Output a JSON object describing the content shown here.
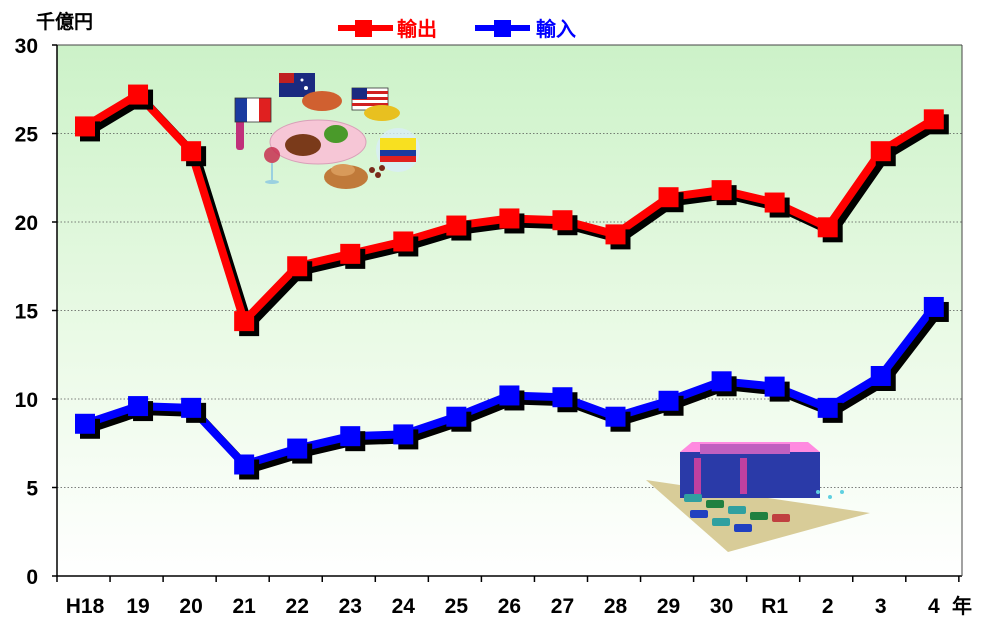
{
  "chart_data": {
    "type": "line",
    "y_unit": "千億円",
    "x_unit": "年",
    "ylim": [
      0,
      30
    ],
    "yticks": [
      "0",
      "5",
      "10",
      "15",
      "20",
      "25",
      "30"
    ],
    "categories": [
      "H18",
      "19",
      "20",
      "21",
      "22",
      "23",
      "24",
      "25",
      "26",
      "27",
      "28",
      "29",
      "30",
      "R1",
      "2",
      "3",
      "4"
    ],
    "grid": true,
    "legend_position": "top",
    "series": [
      {
        "name": "輸出",
        "color": "#ff0000",
        "values": [
          25.4,
          27.2,
          24.0,
          14.4,
          17.5,
          18.2,
          18.9,
          19.8,
          20.2,
          20.1,
          19.3,
          21.4,
          21.8,
          21.1,
          19.7,
          24.0,
          25.8
        ]
      },
      {
        "name": "輸入",
        "color": "#0000ff",
        "values": [
          8.6,
          9.6,
          9.5,
          6.3,
          7.2,
          7.9,
          8.0,
          9.0,
          10.2,
          10.1,
          9.0,
          9.9,
          11.0,
          10.7,
          9.5,
          11.3,
          15.2
        ]
      }
    ]
  }
}
